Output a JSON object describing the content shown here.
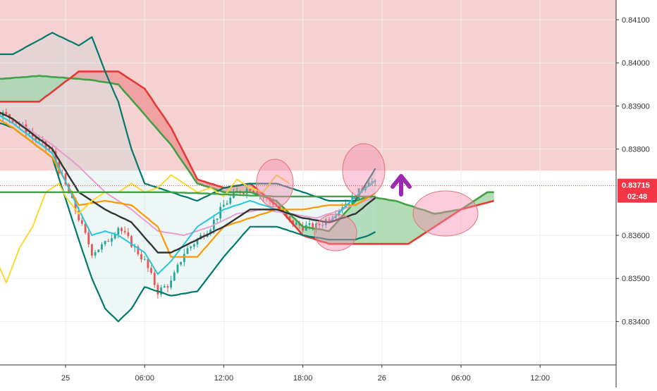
{
  "chart_data": {
    "type": "candlestick",
    "title": "",
    "xlabel": "",
    "ylabel": "",
    "price_axis": {
      "range": [
        0.83365,
        0.8415
      ],
      "ticks": [
        "0.84100",
        "0.84000",
        "0.83900",
        "0.83800",
        "0.83600",
        "0.83500",
        "0.83400"
      ]
    },
    "time_axis": {
      "range_hours": [
        -16.5,
        45
      ],
      "ticks": [
        {
          "label": "25",
          "t": 0
        },
        {
          "label": "06:00",
          "t": 6
        },
        {
          "label": "12:00",
          "t": 12
        },
        {
          "label": "18:00",
          "t": 18
        },
        {
          "label": "26",
          "t": 24
        },
        {
          "label": "06:00",
          "t": 30
        },
        {
          "label": "12:00",
          "t": 36
        }
      ]
    },
    "current_price": {
      "value": 0.83715,
      "label": "0.83715",
      "countdown": "02:48",
      "color": "#f23645"
    },
    "resistance_zone": {
      "from": 0.8375,
      "to": 0.8415,
      "color": "#f4cccc"
    },
    "colors": {
      "up": "#26a69a",
      "down": "#ef5350",
      "cloud_bull": "#a5d6a7",
      "cloud_bear": "#ef9a9a",
      "span_a": "#43a047",
      "span_b": "#e53935",
      "bb": "#00796b",
      "tenkan": "#26c6da",
      "kijun": "#ff9800",
      "chikou": "#fdd835",
      "sma": "#333333",
      "ema": "#e99ccf",
      "arrow": "#9c27b0",
      "highlight": "#f48fb1"
    },
    "ohlc": [],
    "series": []
  }
}
